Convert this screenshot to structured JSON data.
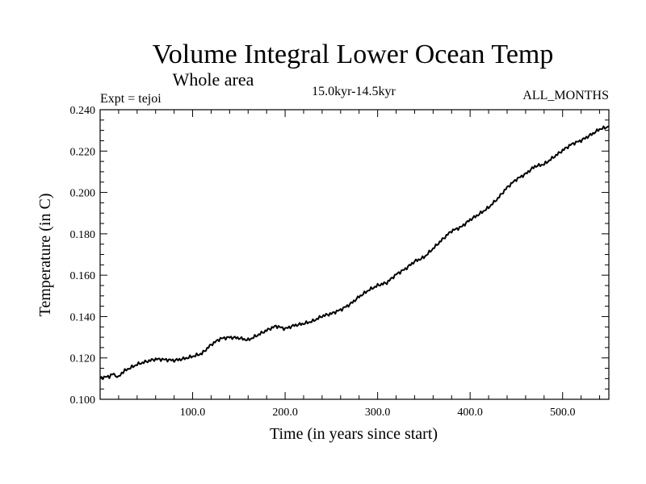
{
  "chart_data": {
    "type": "line",
    "title": "Volume Integral Lower Ocean Temp",
    "subtitle": "Whole area",
    "expt_label": "Expt = tejoi",
    "period_label": "15.0kyr-14.5kyr",
    "months_label": "ALL_MONTHS",
    "xlabel": "Time (in years since start)",
    "ylabel": "Temperature (in C)",
    "xlim": [
      0,
      550
    ],
    "ylim": [
      0.1,
      0.24
    ],
    "xticks": [
      100,
      200,
      300,
      400,
      500
    ],
    "xtick_labels": [
      "100.0",
      "200.0",
      "300.0",
      "400.0",
      "500.0"
    ],
    "yticks": [
      0.1,
      0.12,
      0.14,
      0.16,
      0.18,
      0.2,
      0.22,
      0.24
    ],
    "ytick_labels": [
      "0.100",
      "0.120",
      "0.140",
      "0.160",
      "0.180",
      "0.200",
      "0.220",
      "0.240"
    ],
    "grid": false,
    "series": [
      {
        "name": "tejoi",
        "color": "#000000",
        "x": [
          0,
          10,
          15,
          20,
          25,
          30,
          40,
          50,
          60,
          70,
          80,
          90,
          100,
          110,
          120,
          130,
          140,
          150,
          160,
          170,
          180,
          190,
          200,
          210,
          220,
          230,
          240,
          250,
          260,
          270,
          280,
          290,
          300,
          310,
          320,
          330,
          340,
          350,
          360,
          370,
          380,
          390,
          400,
          410,
          420,
          430,
          440,
          450,
          460,
          470,
          480,
          490,
          500,
          510,
          520,
          530,
          540,
          550
        ],
        "y": [
          0.11,
          0.111,
          0.112,
          0.111,
          0.113,
          0.115,
          0.117,
          0.118,
          0.119,
          0.119,
          0.119,
          0.12,
          0.121,
          0.122,
          0.126,
          0.129,
          0.13,
          0.13,
          0.129,
          0.131,
          0.133,
          0.135,
          0.134,
          0.136,
          0.137,
          0.138,
          0.14,
          0.141,
          0.143,
          0.146,
          0.15,
          0.153,
          0.155,
          0.156,
          0.16,
          0.163,
          0.167,
          0.169,
          0.173,
          0.177,
          0.181,
          0.183,
          0.187,
          0.19,
          0.193,
          0.197,
          0.202,
          0.206,
          0.209,
          0.213,
          0.214,
          0.217,
          0.22,
          0.223,
          0.225,
          0.228,
          0.231,
          0.232
        ]
      }
    ]
  }
}
